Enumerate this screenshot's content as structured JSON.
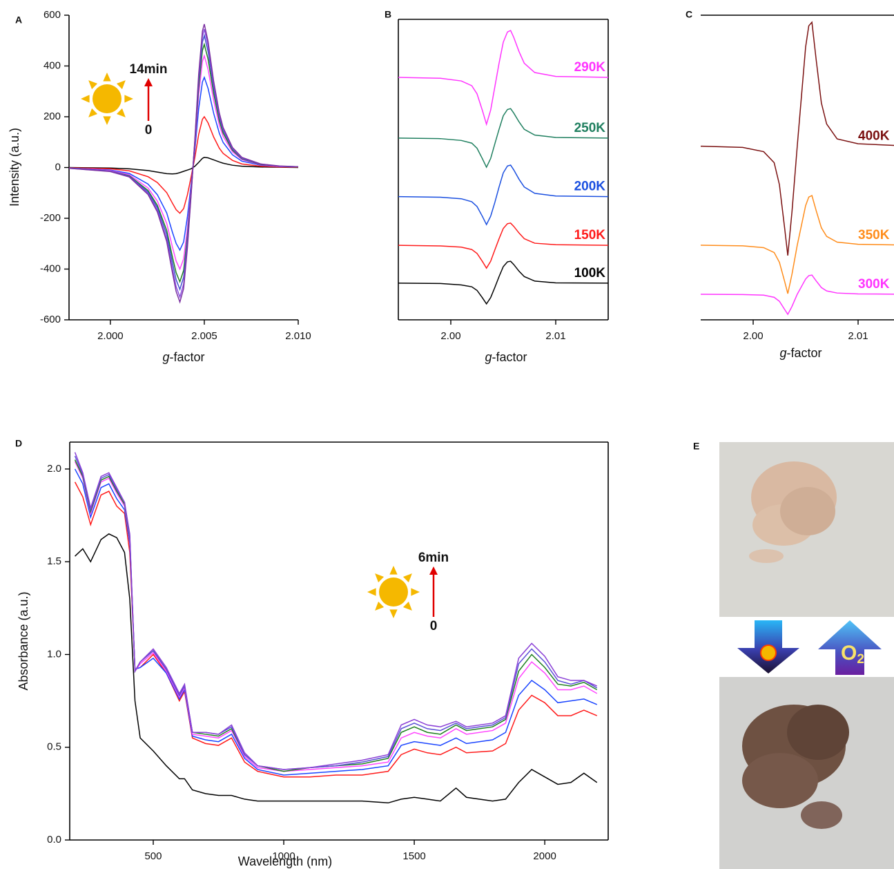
{
  "chart_data": [
    {
      "type": "line",
      "label": "A",
      "x_label": [
        "g",
        "-factor"
      ],
      "y_label": "Intensity (a.u.)",
      "annotations": [
        "14min",
        "0"
      ],
      "x": [
        1.9978,
        2.0,
        2.001,
        2.002,
        2.0025,
        2.003,
        2.0033,
        2.0035,
        2.0037,
        2.0039,
        2.0041,
        2.0043,
        2.0045,
        2.0047,
        2.0049,
        2.005,
        2.0052,
        2.0055,
        2.0058,
        2.006,
        2.0065,
        2.007,
        2.008,
        2.009,
        2.01
      ],
      "xlim": [
        1.9978,
        2.01
      ],
      "xticks": [
        {
          "value": 2.0,
          "label": "2.000"
        },
        2.005,
        {
          "value": 2.01,
          "label": "2.010"
        }
      ],
      "ylim": [
        -600,
        600
      ],
      "yticks": [
        -600,
        -400,
        -200,
        0,
        200,
        400,
        600
      ],
      "series": [
        {
          "color": "#000000",
          "values": [
            0,
            -2,
            -5,
            -12,
            -18,
            -24,
            -25,
            -24,
            -20,
            -15,
            -10,
            -5,
            5,
            20,
            36,
            40,
            38,
            30,
            22,
            17,
            9,
            5,
            2,
            1,
            0
          ]
        },
        {
          "color": "#ff1a1a",
          "values": [
            -1,
            -5,
            -13,
            -36,
            -59,
            -99,
            -140,
            -166,
            -180,
            -162,
            -108,
            -36,
            40,
            130,
            190,
            200,
            176,
            120,
            76,
            56,
            28,
            14,
            5,
            2,
            1
          ]
        },
        {
          "color": "#1a44ff",
          "values": [
            -2,
            -10,
            -23,
            -65,
            -107,
            -179,
            -254,
            -299,
            -325,
            -293,
            -195,
            -65,
            71,
            231,
            337,
            355,
            312,
            213,
            135,
            99,
            50,
            25,
            9,
            4,
            2
          ]
        },
        {
          "color": "#ff44ff",
          "values": [
            -2,
            -12,
            -28,
            -80,
            -132,
            -220,
            -312,
            -368,
            -400,
            -360,
            -240,
            -80,
            88,
            286,
            418,
            440,
            387,
            264,
            167,
            123,
            62,
            31,
            11,
            4,
            2
          ]
        },
        {
          "color": "#1f7f1f",
          "values": [
            -2,
            -14,
            -32,
            -90,
            -149,
            -248,
            -351,
            -414,
            -450,
            -405,
            -270,
            -90,
            97,
            315,
            461,
            485,
            427,
            291,
            184,
            136,
            68,
            34,
            12,
            5,
            2
          ]
        },
        {
          "color": "#3f4fcf",
          "values": [
            -2,
            -14,
            -34,
            -96,
            -158,
            -264,
            -374,
            -442,
            -480,
            -432,
            -288,
            -96,
            104,
            338,
            494,
            520,
            458,
            312,
            198,
            146,
            73,
            36,
            13,
            5,
            3
          ]
        },
        {
          "color": "#8a4fe0",
          "values": [
            -3,
            -15,
            -36,
            -102,
            -168,
            -281,
            -398,
            -469,
            -510,
            -459,
            -306,
            -102,
            109,
            354,
            518,
            545,
            480,
            327,
            207,
            153,
            76,
            38,
            14,
            5,
            3
          ]
        },
        {
          "color": "#7a2fa0",
          "values": [
            -3,
            -16,
            -37,
            -106,
            -175,
            -292,
            -413,
            -488,
            -530,
            -477,
            -318,
            -106,
            113,
            367,
            537,
            565,
            497,
            339,
            215,
            158,
            79,
            40,
            14,
            6,
            3
          ]
        }
      ]
    },
    {
      "type": "line",
      "label": "B",
      "x_label": [
        "g",
        "-factor"
      ],
      "x": [
        1.995,
        1.999,
        2.001,
        2.002,
        2.0025,
        2.003,
        2.0034,
        2.0038,
        2.0042,
        2.0046,
        2.005,
        2.0054,
        2.0057,
        2.006,
        2.0065,
        2.007,
        2.008,
        2.01,
        2.015
      ],
      "xlim": [
        1.995,
        2.015
      ],
      "xticks": [
        {
          "value": 2.0,
          "label": "2.00"
        },
        2.01
      ],
      "ylim": [
        0,
        100
      ],
      "series": [
        {
          "name": "290K",
          "color": "#ff33ff",
          "values": [
            80.7,
            80.4,
            79.5,
            77.9,
            75.2,
            69.8,
            65.1,
            69.8,
            77.6,
            85.4,
            92.4,
            95.8,
            96.3,
            94.0,
            89.3,
            85.4,
            82.3,
            81.0,
            80.7
          ]
        },
        {
          "name": "250K",
          "color": "#1f7f5f",
          "values": [
            60.5,
            60.3,
            59.7,
            58.8,
            57.1,
            53.7,
            50.8,
            53.7,
            58.6,
            63.4,
            67.9,
            70.0,
            70.3,
            68.8,
            65.9,
            63.4,
            61.5,
            60.7,
            60.5
          ]
        },
        {
          "name": "200K",
          "color": "#1a4fe0",
          "values": [
            41.0,
            40.8,
            40.3,
            39.3,
            37.7,
            34.5,
            31.7,
            34.5,
            39.1,
            44.2,
            48.9,
            51.2,
            51.5,
            49.9,
            46.8,
            44.2,
            42.1,
            41.2,
            41.0
          ]
        },
        {
          "name": "150K",
          "color": "#ff1a1a",
          "values": [
            24.8,
            24.6,
            24.2,
            23.4,
            22.1,
            19.5,
            17.2,
            19.5,
            23.3,
            27.0,
            30.4,
            32.0,
            32.2,
            31.1,
            28.9,
            27.0,
            25.5,
            25.0,
            24.8
          ]
        },
        {
          "name": "100K",
          "color": "#000000",
          "values": [
            12.2,
            12.1,
            11.6,
            11.0,
            9.8,
            7.4,
            5.3,
            7.4,
            10.8,
            14.4,
            17.7,
            19.3,
            19.5,
            18.4,
            16.2,
            14.4,
            12.9,
            12.3,
            12.2
          ]
        }
      ]
    },
    {
      "type": "line",
      "label": "C",
      "x_label": [
        "g",
        "-factor"
      ],
      "x": [
        1.995,
        1.999,
        2.001,
        2.002,
        2.0025,
        2.003,
        2.0033,
        2.0037,
        2.0042,
        2.0046,
        2.005,
        2.0053,
        2.0056,
        2.006,
        2.0065,
        2.007,
        2.008,
        2.01,
        2.015
      ],
      "xlim": [
        1.995,
        2.015
      ],
      "xticks": [
        {
          "value": 2.0,
          "label": "2.00"
        },
        2.01
      ],
      "ylim": [
        0,
        100
      ],
      "series": [
        {
          "name": "400K",
          "color": "#7a1010",
          "values": [
            57.0,
            56.6,
            55.2,
            51.6,
            44.4,
            30.1,
            21.1,
            35.5,
            57.0,
            73.3,
            89.6,
            96.5,
            97.7,
            85.5,
            71.2,
            64.3,
            59.4,
            57.8,
            57.0
          ]
        },
        {
          "name": "350K",
          "color": "#ff8c1a",
          "values": [
            24.5,
            24.3,
            23.7,
            22.1,
            18.9,
            12.6,
            8.6,
            15.0,
            24.5,
            31.0,
            37.5,
            40.3,
            40.8,
            35.9,
            30.2,
            27.4,
            25.5,
            24.8,
            24.5
          ]
        },
        {
          "name": "300K",
          "color": "#ff33ff",
          "values": [
            8.4,
            8.3,
            8.1,
            7.4,
            6.1,
            3.4,
            1.8,
            4.4,
            8.4,
            10.9,
            13.4,
            14.5,
            14.7,
            12.8,
            10.6,
            9.5,
            8.8,
            8.5,
            8.4
          ]
        }
      ]
    },
    {
      "type": "line",
      "label": "D",
      "x_label": "Wavelength (nm)",
      "y_label": "Absorbance (a.u.)",
      "annotations": [
        "6min",
        "0"
      ],
      "x": [
        200,
        230,
        260,
        300,
        330,
        360,
        390,
        410,
        430,
        450,
        500,
        550,
        600,
        620,
        650,
        700,
        750,
        800,
        850,
        900,
        1000,
        1100,
        1200,
        1300,
        1400,
        1450,
        1500,
        1550,
        1600,
        1660,
        1700,
        1800,
        1850,
        1900,
        1950,
        2000,
        2050,
        2100,
        2150,
        2200
      ],
      "xlim": [
        180,
        2243
      ],
      "xticks": [
        500,
        1000,
        1500,
        2000
      ],
      "ylim": [
        0,
        2.145
      ],
      "yticks": [
        {
          "value": 0,
          "label": "0.0"
        },
        0.5,
        {
          "value": 1,
          "label": "1.0"
        },
        1.5,
        {
          "value": 2,
          "label": "2.0"
        }
      ],
      "series": [
        {
          "color": "#000000",
          "values": [
            1.53,
            1.57,
            1.5,
            1.62,
            1.65,
            1.63,
            1.55,
            1.3,
            0.75,
            0.55,
            0.48,
            0.4,
            0.33,
            0.33,
            0.27,
            0.25,
            0.24,
            0.24,
            0.22,
            0.21,
            0.21,
            0.21,
            0.21,
            0.21,
            0.2,
            0.22,
            0.23,
            0.22,
            0.21,
            0.28,
            0.23,
            0.21,
            0.22,
            0.31,
            0.38,
            0.34,
            0.3,
            0.31,
            0.36,
            0.31
          ]
        },
        {
          "color": "#ff1a1a",
          "values": [
            1.93,
            1.85,
            1.7,
            1.86,
            1.88,
            1.8,
            1.76,
            1.55,
            0.92,
            0.93,
            1.0,
            0.9,
            0.75,
            0.8,
            0.55,
            0.52,
            0.51,
            0.55,
            0.42,
            0.37,
            0.34,
            0.34,
            0.35,
            0.35,
            0.37,
            0.46,
            0.49,
            0.47,
            0.46,
            0.5,
            0.47,
            0.48,
            0.52,
            0.7,
            0.78,
            0.74,
            0.67,
            0.67,
            0.7,
            0.67
          ]
        },
        {
          "color": "#1a44ff",
          "values": [
            2.0,
            1.92,
            1.74,
            1.9,
            1.92,
            1.84,
            1.78,
            1.6,
            0.92,
            0.93,
            0.98,
            0.9,
            0.76,
            0.81,
            0.56,
            0.54,
            0.53,
            0.57,
            0.44,
            0.38,
            0.35,
            0.36,
            0.37,
            0.38,
            0.4,
            0.51,
            0.53,
            0.52,
            0.51,
            0.55,
            0.52,
            0.54,
            0.58,
            0.78,
            0.86,
            0.81,
            0.74,
            0.75,
            0.76,
            0.73
          ]
        },
        {
          "color": "#ff44ff",
          "values": [
            2.04,
            1.95,
            1.76,
            1.93,
            1.95,
            1.87,
            1.8,
            1.62,
            0.91,
            0.95,
            1.01,
            0.91,
            0.77,
            0.82,
            0.57,
            0.56,
            0.55,
            0.59,
            0.45,
            0.39,
            0.37,
            0.38,
            0.39,
            0.4,
            0.42,
            0.55,
            0.58,
            0.56,
            0.55,
            0.6,
            0.57,
            0.59,
            0.63,
            0.87,
            0.96,
            0.9,
            0.81,
            0.81,
            0.83,
            0.79
          ]
        },
        {
          "color": "#1f7f1f",
          "values": [
            2.05,
            1.96,
            1.77,
            1.94,
            1.96,
            1.88,
            1.81,
            1.63,
            0.91,
            0.96,
            1.02,
            0.92,
            0.78,
            0.83,
            0.58,
            0.57,
            0.56,
            0.6,
            0.46,
            0.4,
            0.37,
            0.39,
            0.4,
            0.41,
            0.44,
            0.58,
            0.61,
            0.58,
            0.57,
            0.62,
            0.59,
            0.61,
            0.65,
            0.91,
            1.0,
            0.93,
            0.84,
            0.83,
            0.85,
            0.81
          ]
        },
        {
          "color": "#5a4fd6",
          "values": [
            2.07,
            1.97,
            1.78,
            1.95,
            1.97,
            1.89,
            1.82,
            1.64,
            0.91,
            0.96,
            1.02,
            0.92,
            0.78,
            0.83,
            0.58,
            0.58,
            0.57,
            0.61,
            0.46,
            0.4,
            0.38,
            0.39,
            0.4,
            0.42,
            0.45,
            0.6,
            0.63,
            0.6,
            0.59,
            0.63,
            0.6,
            0.62,
            0.66,
            0.95,
            1.03,
            0.96,
            0.86,
            0.84,
            0.86,
            0.82
          ]
        },
        {
          "color": "#8a3fd6",
          "values": [
            2.09,
            1.98,
            1.79,
            1.96,
            1.98,
            1.9,
            1.82,
            1.65,
            0.91,
            0.96,
            1.03,
            0.93,
            0.79,
            0.84,
            0.58,
            0.58,
            0.57,
            0.62,
            0.47,
            0.4,
            0.38,
            0.39,
            0.41,
            0.43,
            0.46,
            0.62,
            0.65,
            0.62,
            0.61,
            0.64,
            0.61,
            0.63,
            0.67,
            0.98,
            1.06,
            0.99,
            0.88,
            0.86,
            0.86,
            0.83
          ]
        }
      ]
    }
  ],
  "panel_e": {
    "label": "E",
    "arrow_label": [
      "O",
      "2"
    ]
  }
}
